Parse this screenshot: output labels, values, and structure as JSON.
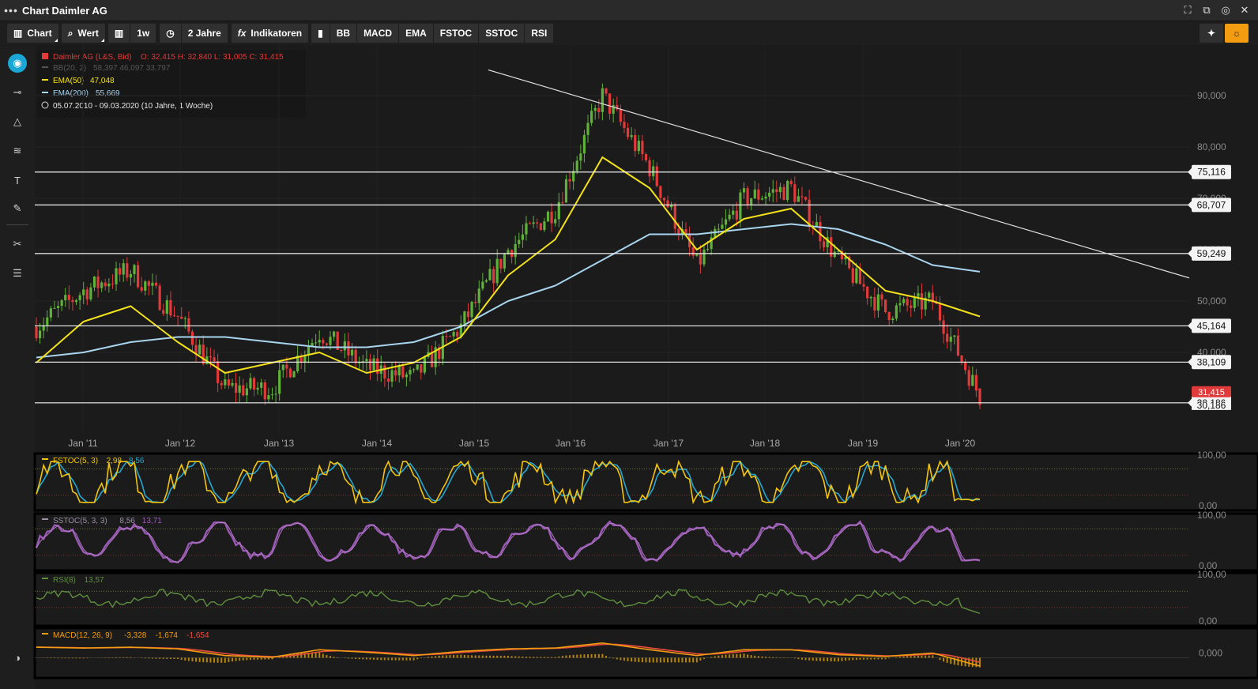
{
  "window": {
    "title": "Chart Daimler AG",
    "menu_icon": "ellipsis-icon"
  },
  "toolbar": {
    "chart_label": "Chart",
    "value_label": "Wert",
    "interval_label": "1w",
    "range_label": "2 Jahre",
    "indicators_label": "Indikatoren",
    "indicator_buttons": [
      "BB",
      "MACD",
      "EMA",
      "FSTOC",
      "SSTOC",
      "RSI"
    ]
  },
  "legend": {
    "main": "Daimler AG (L&S, Bid)",
    "ohlc": "O: 32,415  H: 32,840  L: 31,005  C: 31,415",
    "bb_label": "BB(20, 2)",
    "bb_values": "58,397  46,097  33,797",
    "ema50_label": "EMA(50)",
    "ema50_value": "47,048",
    "ema200_label": "EMA(200)",
    "ema200_value": "55,669",
    "period": "05.07.2010 - 09.03.2020   (10 Jahre, 1 Woche)"
  },
  "colors": {
    "up": "#5fb13a",
    "down": "#e03a3a",
    "ema50": "#f2e11b",
    "ema200": "#a8d4ee",
    "stoch_k": "#f2c40f",
    "stoch_d": "#27a7cf",
    "sstoc": "#9b59b6",
    "rsi": "#5f8f3e",
    "macd": "#f39c12",
    "macd_signal": "#e74c3c",
    "macd_hist": "#b8860b"
  },
  "chart_data": [
    {
      "type": "candlestick",
      "title": "Daimler AG (L&S, Bid)",
      "x_ticks": [
        "Jan '11",
        "Jan '12",
        "Jan '13",
        "Jan '14",
        "Jan '15",
        "Jan '16",
        "Jan '17",
        "Jan '18",
        "Jan '19",
        "Jan '20"
      ],
      "y_ticks": [
        "30,000",
        "40,000",
        "50,000",
        "60,000",
        "70,000",
        "80,000",
        "90,000"
      ],
      "ylim": [
        25,
        98
      ],
      "last_price": "31,415",
      "close_weeks": [
        0,
        26,
        52,
        78,
        104,
        130,
        156,
        182,
        208,
        234,
        260,
        286,
        312,
        338,
        364,
        390,
        416,
        442,
        468,
        494,
        520
      ],
      "close_values": [
        45,
        52,
        56,
        47,
        33,
        33,
        44,
        37,
        35,
        45,
        60,
        68,
        90,
        76,
        57,
        70,
        72,
        58,
        48,
        50,
        31.4
      ],
      "ema50_values": [
        38,
        46,
        49,
        42,
        36,
        38,
        40,
        36,
        38,
        43,
        55,
        62,
        78,
        72,
        60,
        66,
        68,
        60,
        52,
        50,
        47.0
      ],
      "ema200_values": [
        39,
        40,
        42,
        43,
        43,
        42,
        41,
        41,
        42,
        45,
        50,
        53,
        58,
        63,
        63,
        64,
        65,
        64,
        61,
        57,
        55.7
      ],
      "support_lines": [
        "75,116",
        "68,707",
        "59,249",
        "45,164",
        "38,109",
        "30,186"
      ],
      "support_values": [
        75.116,
        68.707,
        59.249,
        45.164,
        38.109,
        30.186
      ],
      "trendline": {
        "from_label": "Jan '15",
        "from_value": 95,
        "to_value": 54.5
      }
    },
    {
      "type": "line",
      "title": "FSTOC(5, 3)",
      "values_text": "2,98",
      "values_text2": "8,56",
      "y_ticks": [
        "100,00",
        "0,00"
      ],
      "ylim": [
        0,
        100
      ],
      "levels": [
        80,
        20
      ]
    },
    {
      "type": "line",
      "title": "SSTOC(5, 3, 3)",
      "values_text": "8,56",
      "values_text2": "13,71",
      "y_ticks": [
        "100,00",
        "0,00"
      ],
      "ylim": [
        0,
        100
      ],
      "levels": [
        80,
        20
      ]
    },
    {
      "type": "line",
      "title": "RSI(8)",
      "values_text": "13,57",
      "y_ticks": [
        "100,00",
        "0,00"
      ],
      "ylim": [
        0,
        100
      ],
      "levels": [
        70,
        30
      ]
    },
    {
      "type": "line",
      "title": "MACD(12, 26, 9)",
      "values_text": "-3,328",
      "values_text2": "-1,674",
      "values_text3": "-1,654",
      "y_ticks": [
        "0,000"
      ]
    }
  ]
}
